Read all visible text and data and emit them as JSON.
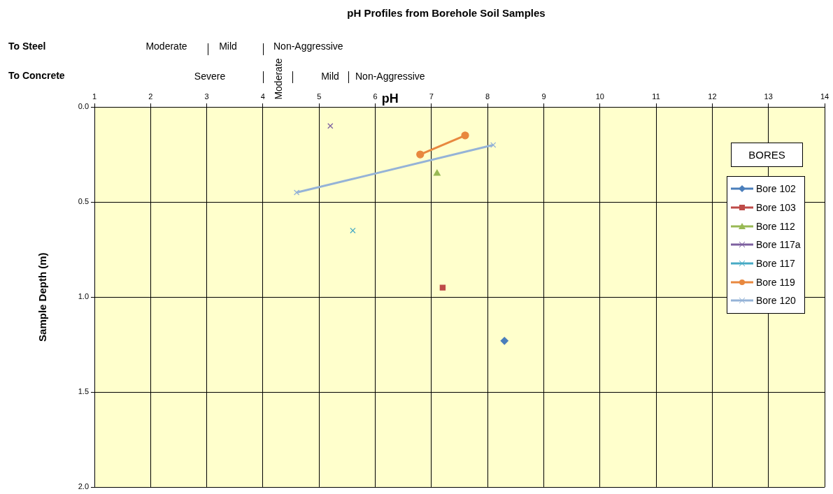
{
  "chart_data": {
    "type": "line",
    "title": "pH Profiles from Borehole Soil Samples",
    "xlabel": "pH",
    "ylabel": "Sample Depth (m)",
    "legend_title": "BORES",
    "legend": "right",
    "annotations": [
      "To Steel",
      "Moderate",
      "Mild",
      "Non-Aggressive",
      "To Concrete",
      "Severe",
      "Moderate",
      "Mild",
      "Non-Aggressive"
    ],
    "xlim": [
      1,
      14
    ],
    "xticks": [
      1,
      2,
      3,
      4,
      5,
      6,
      7,
      8,
      9,
      10,
      11,
      12,
      13,
      14
    ],
    "ylim": [
      2,
      0
    ],
    "yticks": [
      {
        "value": 0,
        "label": "0.0"
      },
      {
        "value": 0.5,
        "label": "0.5"
      },
      {
        "value": 1,
        "label": "1.0"
      },
      {
        "value": 1.5,
        "label": "1.5"
      },
      {
        "value": 2,
        "label": "2.0"
      }
    ],
    "grid": true,
    "series": [
      {
        "name": "Bore 102",
        "color": "#4a7ebb",
        "marker": "diamond",
        "x": [
          8.3
        ],
        "values": [
          1.23
        ]
      },
      {
        "name": "Bore 103",
        "color": "#be4b48",
        "marker": "square",
        "x": [
          7.2
        ],
        "values": [
          0.95
        ]
      },
      {
        "name": "Bore 112",
        "color": "#98b954",
        "marker": "triangle",
        "x": [
          7.1
        ],
        "values": [
          0.35
        ]
      },
      {
        "name": "Bore 117a",
        "color": "#7d60a0",
        "marker": "cross",
        "x": [
          5.2
        ],
        "values": [
          0.1
        ]
      },
      {
        "name": "Bore 117",
        "color": "#46aac5",
        "marker": "cross",
        "x": [
          5.6
        ],
        "values": [
          0.65
        ]
      },
      {
        "name": "Bore 119",
        "color": "#e8883f",
        "marker": "circle",
        "x": [
          6.8,
          7.6
        ],
        "values": [
          0.25,
          0.15
        ]
      },
      {
        "name": "Bore 120",
        "color": "#95b3d7",
        "marker": "cross",
        "x": [
          4.6,
          8.1
        ],
        "values": [
          0.45,
          0.2
        ]
      }
    ]
  }
}
